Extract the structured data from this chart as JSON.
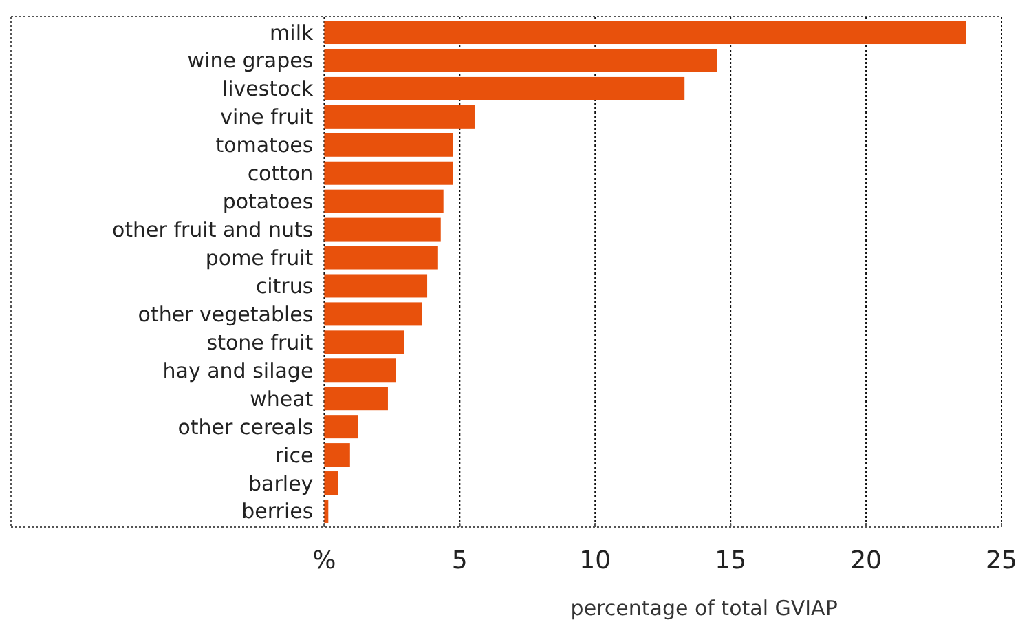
{
  "chart_data": {
    "type": "bar",
    "orientation": "horizontal",
    "xlabel": "percentage of total GVIAP",
    "categories": [
      "milk",
      "wine grapes",
      "livestock",
      "vine fruit",
      "tomatoes",
      "cotton",
      "potatoes",
      "other fruit and nuts",
      "pome fruit",
      "citrus",
      "other vegetables",
      "stone fruit",
      "hay and silage",
      "wheat",
      "other cereals",
      "rice",
      "barley",
      "berries"
    ],
    "values": [
      23.7,
      14.5,
      13.3,
      5.55,
      4.75,
      4.75,
      4.4,
      4.3,
      4.2,
      3.8,
      3.6,
      2.95,
      2.65,
      2.35,
      1.25,
      0.95,
      0.5,
      0.15
    ],
    "color": "#e8510c",
    "xlim": [
      0,
      25
    ],
    "xticks": [
      {
        "value": 0,
        "label": "%"
      },
      5,
      10,
      15,
      20,
      25
    ],
    "grid": "x"
  }
}
